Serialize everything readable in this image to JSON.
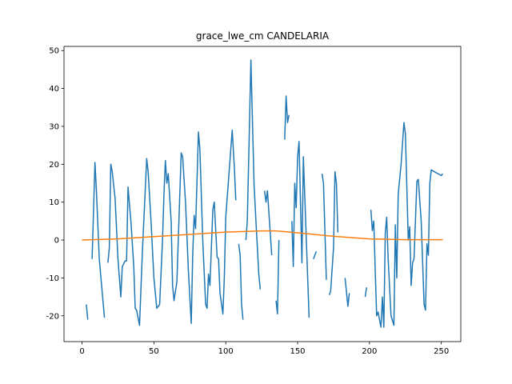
{
  "chart_data": {
    "type": "line",
    "title": "grace_lwe_cm CANDELARIA",
    "xlim": [
      -12.55,
      263.55
    ],
    "xticks": [
      0,
      50,
      100,
      150,
      200,
      250
    ],
    "ylim": [
      -26.8,
      51.1
    ],
    "yticks": [
      -20,
      -10,
      0,
      10,
      20,
      30,
      40,
      50
    ],
    "series": [
      {
        "color": "#1f77b4",
        "x": [
          3,
          4,
          5.5,
          7,
          9,
          10,
          12,
          15.6,
          17,
          18,
          19,
          20,
          21,
          23,
          25,
          27,
          28,
          30,
          31,
          32,
          34,
          36,
          37,
          38,
          40,
          42,
          45,
          46,
          48,
          50,
          52,
          54,
          56,
          57,
          58,
          59,
          60,
          62,
          63,
          64,
          66,
          69,
          70,
          72,
          74,
          76,
          77,
          78,
          79,
          81,
          82,
          84,
          86,
          87,
          88,
          89,
          91,
          92,
          94,
          95,
          96,
          98,
          99,
          100,
          104.5,
          106,
          107,
          108,
          109,
          110,
          111,
          112,
          113,
          114,
          115,
          117.5,
          119.7,
          121,
          123,
          124,
          125.5,
          127,
          128,
          129,
          132,
          133.5,
          135,
          136,
          137,
          139,
          141,
          142,
          143,
          144,
          145,
          146,
          147,
          148,
          149,
          150,
          151,
          153,
          154,
          158,
          159.5,
          161,
          163,
          165,
          167,
          168,
          170,
          171,
          172,
          173,
          175,
          176,
          177,
          178,
          180,
          183,
          185,
          186,
          191,
          197,
          198,
          199.5,
          201,
          202,
          203,
          204,
          205,
          206,
          208,
          209,
          210,
          211,
          212,
          213,
          215,
          217,
          218,
          219,
          220,
          222,
          224,
          225,
          226,
          227,
          228,
          229,
          230,
          231,
          233,
          234,
          236,
          238,
          239,
          240,
          241,
          242,
          243,
          250,
          251
        ],
        "values": [
          -17,
          -21,
          null,
          -5,
          20.5,
          13,
          -5,
          -20.5,
          null,
          -6,
          -2,
          20,
          18,
          11,
          -5,
          -15,
          -7,
          -5.5,
          -5.5,
          14,
          5,
          -7,
          -18,
          -18.5,
          -22.5,
          -3,
          21.5,
          18,
          5,
          -10,
          -18,
          -17,
          0,
          12,
          21,
          15,
          17.5,
          5,
          -12,
          -16,
          -11,
          23,
          22,
          10,
          -8,
          -22,
          -4,
          6.5,
          3,
          28.5,
          24,
          0,
          -17,
          -18,
          -9,
          -12,
          8,
          10,
          -4.5,
          -5,
          -14,
          -19.5,
          -10,
          6,
          29,
          19,
          10.5,
          null,
          -1,
          -4,
          -17,
          -21,
          null,
          0,
          5,
          47.5,
          14.7,
          5,
          -9,
          -13,
          null,
          13,
          10,
          13,
          -4,
          null,
          -16,
          -19.5,
          0,
          null,
          26.5,
          38,
          31,
          33,
          null,
          5,
          -7,
          15,
          8.5,
          22,
          26,
          -6,
          22,
          -20.5,
          null,
          -5,
          -3,
          null,
          17.5,
          15,
          -10.5,
          null,
          -14.5,
          -13.5,
          -2,
          18,
          15,
          2,
          null,
          -10,
          -17.5,
          -14,
          null,
          -15,
          -12.5,
          null,
          8,
          2.5,
          5,
          -8,
          -20,
          -19,
          -23,
          -15,
          -23,
          2,
          6,
          -5,
          -20,
          -22.5,
          4,
          -10,
          12,
          20,
          31,
          28,
          14,
          0,
          3.5,
          -12,
          -6,
          -5,
          15.5,
          16,
          5,
          -17,
          -18.5,
          -1,
          -4,
          15,
          18.5,
          17,
          17.5
        ]
      },
      {
        "color": "#ff7f0e",
        "x": [
          0,
          25,
          50,
          75,
          100,
          125,
          135,
          150,
          175,
          200,
          225,
          251
        ],
        "values": [
          0,
          0.3,
          0.9,
          1.5,
          2.1,
          2.4,
          2.4,
          1.9,
          1.0,
          0.3,
          0.1,
          0.1
        ]
      }
    ]
  }
}
